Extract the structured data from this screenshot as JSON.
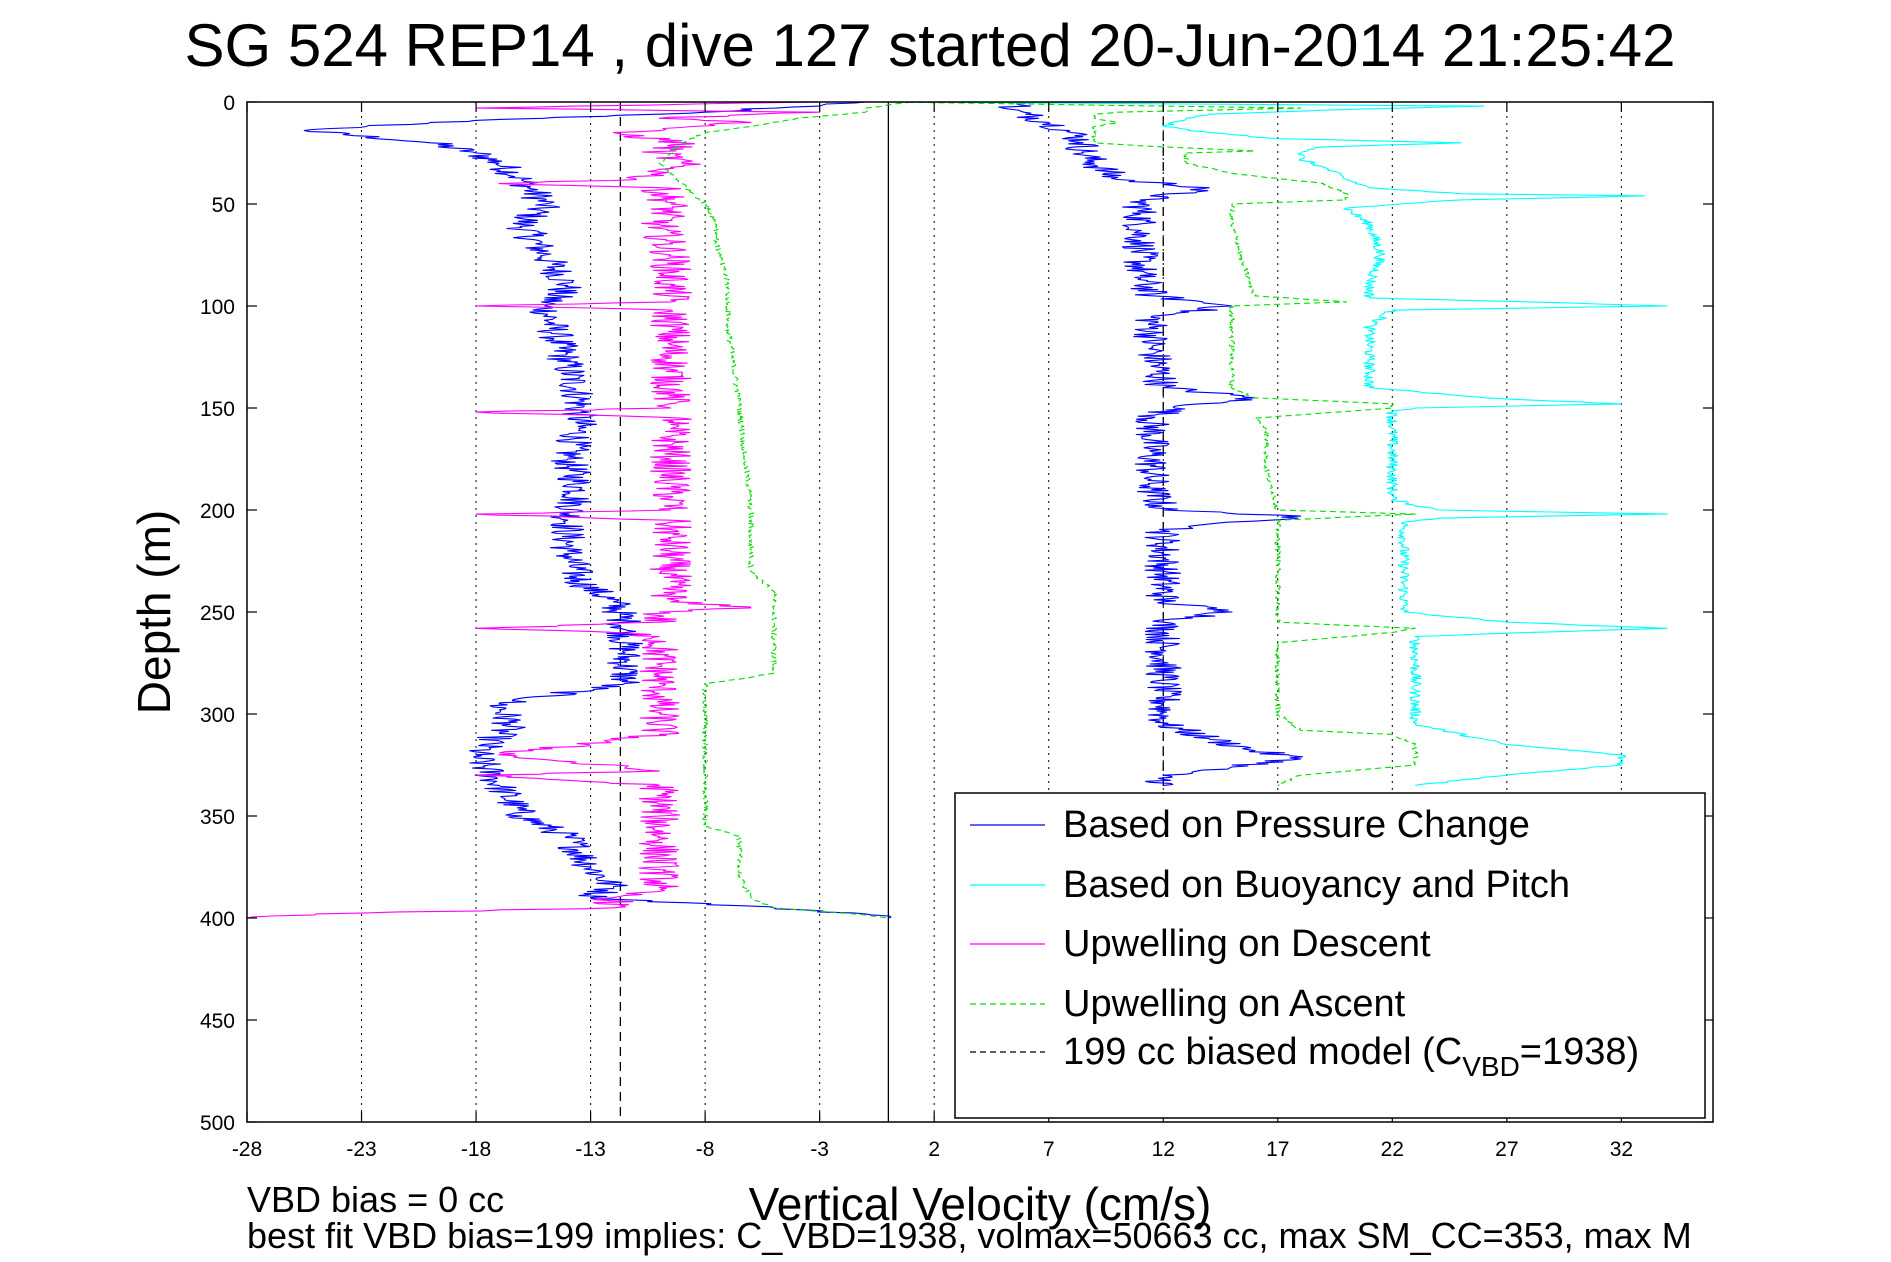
{
  "chart_data": {
    "type": "line",
    "title": "SG 524   REP14  , dive 127 started 20-Jun-2014 21:25:42",
    "xlabel": "Vertical Velocity (cm/s)",
    "ylabel": "Depth (m)",
    "xlim": [
      -28,
      36
    ],
    "ylim": [
      0,
      500
    ],
    "y_reversed": true,
    "xticks": [
      -28,
      -23,
      -18,
      -13,
      -8,
      -3,
      2,
      7,
      12,
      17,
      22,
      27,
      32
    ],
    "yticks": [
      0,
      50,
      100,
      150,
      200,
      250,
      300,
      350,
      400,
      450,
      500
    ],
    "grid": "x dotted",
    "legend_position": "lower-right",
    "footer_lines": [
      "VBD bias = 0 cc",
      "best fit VBD bias=199 implies: C_VBD=1938, volmax=50663 cc, max SM_CC=353, max M"
    ],
    "reference_lines": [
      {
        "x": 0,
        "style": "solid",
        "color": "#000000"
      },
      {
        "x": -11.7,
        "style": "dashed",
        "color": "#000000"
      },
      {
        "x": 12,
        "style": "dashed",
        "color": "#000000"
      }
    ],
    "series": [
      {
        "name": "Based on Pressure Change",
        "color": "#0000ff",
        "style": "solid",
        "branches": [
          {
            "y": [
              0,
              5,
              10,
              14,
              20,
              25,
              30,
              38,
              50,
              60,
              75,
              90,
              100,
              115,
              130,
              145,
              160,
              175,
              190,
              205,
              220,
              235,
              245,
              255,
              270,
              285,
              295,
              305,
              320,
              335,
              350,
              360,
              375,
              385,
              390,
              395,
              398,
              400
            ],
            "x": [
              -1,
              -8,
              -20,
              -25.5,
              -20,
              -18,
              -17,
              -16,
              -15,
              -16,
              -15,
              -14,
              -15,
              -14.5,
              -14,
              -13.5,
              -13.5,
              -14,
              -13.5,
              -14,
              -14,
              -13.5,
              -12,
              -11.5,
              -11.5,
              -11.5,
              -17,
              -16.5,
              -18,
              -17,
              -16,
              -14,
              -13,
              -12,
              -13,
              -5,
              -1,
              0
            ],
            "noise": 0.8
          },
          {
            "y": [
              0,
              3,
              6,
              10,
              15,
              20,
              25,
              30,
              38,
              42,
              48,
              55,
              70,
              85,
              95,
              100,
              105,
              120,
              140,
              145,
              150,
              155,
              170,
              190,
              200,
              203,
              210,
              230,
              245,
              250,
              255,
              260,
              270,
              285,
              295,
              300,
              305,
              312,
              318,
              322,
              326,
              330,
              335
            ],
            "x": [
              7,
              5,
              6,
              7,
              8,
              8.5,
              8.5,
              9,
              10,
              14,
              11,
              11,
              11,
              11,
              11.5,
              15,
              11.5,
              11.5,
              12,
              16,
              12.5,
              11.5,
              11.5,
              11.5,
              12,
              18,
              12,
              12,
              12,
              15,
              12,
              12,
              12,
              12,
              12,
              12,
              12,
              14,
              16,
              18,
              15,
              12,
              12
            ],
            "noise": 0.8
          }
        ]
      },
      {
        "name": "Based on Buoyancy and Pitch",
        "color": "#00ffff",
        "style": "solid",
        "branches": [
          {
            "y": [
              0,
              2,
              4,
              6,
              8,
              12,
              15,
              18,
              20,
              22,
              25,
              28,
              32,
              38,
              42,
              45,
              46,
              48,
              52,
              60,
              75,
              90,
              96,
              98,
              100,
              102,
              110,
              125,
              140,
              145,
              148,
              150,
              152,
              160,
              180,
              195,
              200,
              202,
              204,
              206,
              215,
              235,
              250,
              255,
              258,
              260,
              262,
              270,
              290,
              305,
              315,
              320,
              325,
              330,
              335
            ],
            "x": [
              0,
              26,
              19,
              14,
              13,
              12,
              14,
              17,
              25,
              19,
              18,
              18,
              19,
              20,
              21,
              25,
              33,
              25,
              20,
              21,
              21.5,
              21,
              21,
              28,
              34,
              22,
              21,
              21,
              21,
              26,
              32,
              23,
              22,
              22,
              22,
              22,
              24,
              34,
              24,
              22.5,
              22.5,
              22.5,
              22.5,
              27,
              34,
              28,
              23,
              23,
              23,
              23,
              27,
              32,
              32,
              27,
              23
            ],
            "noise": 0.25
          }
        ]
      },
      {
        "name": "Upwelling on Descent",
        "color": "#ff00ff",
        "style": "solid",
        "branches": [
          {
            "y": [
              0,
              3,
              5,
              8,
              10,
              15,
              20,
              25,
              30,
              35,
              38,
              40,
              42,
              50,
              60,
              75,
              90,
              98,
              100,
              102,
              110,
              130,
              145,
              150,
              152,
              155,
              158,
              160,
              175,
              195,
              200,
              202,
              205,
              215,
              235,
              245,
              248,
              250,
              255,
              258,
              260,
              262,
              270,
              285,
              290,
              295,
              300,
              310,
              320,
              328,
              330,
              335,
              350,
              360,
              375,
              385,
              390,
              395,
              398,
              400
            ],
            "x": [
              -3,
              -18,
              -3,
              -10,
              -6,
              -12,
              -9,
              -10,
              -9,
              -10,
              -11,
              -17,
              -10,
              -9.5,
              -10,
              -9.5,
              -9.5,
              -9.5,
              -18,
              -9.5,
              -9.5,
              -9.5,
              -9.5,
              -9.5,
              -18,
              -9,
              -9.5,
              -9.5,
              -9.5,
              -9.5,
              -9.5,
              -18,
              -9.5,
              -9.5,
              -9.5,
              -9.5,
              -6,
              -10,
              -10,
              -18,
              -12,
              -10,
              -10,
              -10,
              -10,
              -10,
              -10,
              -10,
              -17,
              -10,
              -18,
              -10,
              -10,
              -10,
              -10,
              -10,
              -12,
              -12,
              -25,
              -28
            ],
            "noise": 0.9
          }
        ]
      },
      {
        "name": "Upwelling on Ascent",
        "color": "#00dd00",
        "style": "dashed",
        "branches": [
          {
            "y": [
              0,
              3,
              5,
              8,
              12,
              15,
              20,
              30,
              40,
              45,
              50,
              60,
              70,
              90,
              110,
              150,
              200,
              230,
              235,
              240,
              260,
              280,
              282,
              285,
              300,
              340,
              355,
              358,
              360,
              380,
              390,
              395,
              398,
              400
            ],
            "x": [
              1,
              -1,
              -1,
              -4,
              -6,
              -8,
              -9,
              -10,
              -9,
              -8.5,
              -8,
              -7.5,
              -7.5,
              -7,
              -7,
              -6.5,
              -6,
              -6,
              -5.5,
              -5,
              -5,
              -5,
              -6,
              -8,
              -8,
              -8,
              -8,
              -7,
              -6.5,
              -6.5,
              -6,
              -5,
              -1.5,
              0
            ],
            "noise": 0.12
          },
          {
            "y": [
              0,
              3,
              5,
              6,
              8,
              10,
              12,
              15,
              20,
              22,
              24,
              25,
              30,
              35,
              40,
              45,
              48,
              50,
              60,
              80,
              95,
              98,
              100,
              110,
              130,
              140,
              145,
              148,
              150,
              155,
              160,
              180,
              200,
              202,
              205,
              230,
              250,
              255,
              258,
              260,
              265,
              275,
              295,
              300,
              308,
              310,
              315,
              320,
              325,
              330,
              335
            ],
            "x": [
              0,
              18,
              10,
              9,
              9,
              10,
              9,
              9,
              9,
              12,
              16,
              13,
              13,
              15,
              19,
              20,
              20,
              15,
              15,
              15.5,
              16,
              20,
              15,
              15,
              15,
              15,
              16,
              22,
              22,
              16,
              16.5,
              16.5,
              17,
              23,
              17,
              17,
              17,
              17,
              23,
              22,
              17,
              17,
              17,
              17,
              18,
              22,
              23,
              23,
              23,
              18,
              17
            ],
            "noise": 0.12
          }
        ]
      },
      {
        "name": "199 cc biased model (CVBD=1938)",
        "color": "#000000",
        "style": "dashed",
        "branches": []
      }
    ],
    "legend": [
      {
        "label": "Based on Pressure Change",
        "color": "#0000ff",
        "style": "solid"
      },
      {
        "label": "Based on Buoyancy and Pitch",
        "color": "#00ffff",
        "style": "solid"
      },
      {
        "label": "Upwelling on Descent",
        "color": "#ff00ff",
        "style": "solid"
      },
      {
        "label": "Upwelling on Ascent",
        "color": "#00dd00",
        "style": "dashed"
      },
      {
        "label": "199 cc biased model (C",
        "label_sub": "VBD",
        "label_tail": "=1938)",
        "color": "#000000",
        "style": "dashed"
      }
    ]
  }
}
